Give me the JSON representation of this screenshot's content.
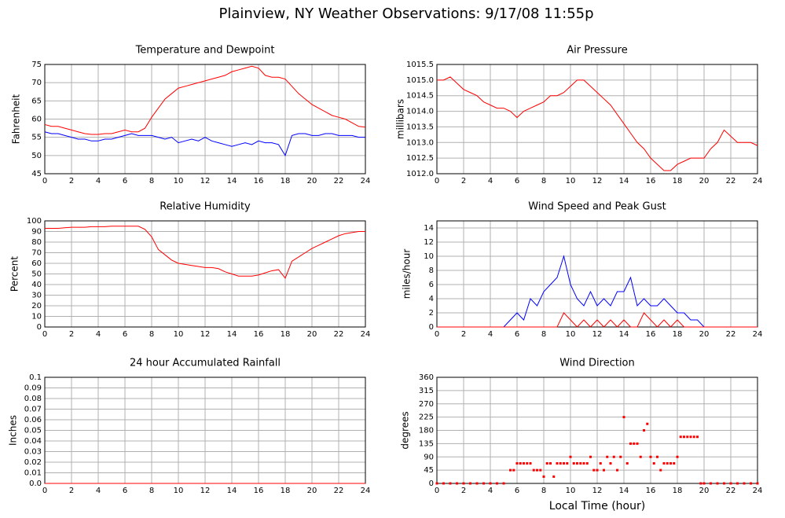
{
  "title": "Plainview, NY Weather Observations: 9/17/08 11:55p",
  "chart_data": [
    {
      "type": "line",
      "title": "Temperature and Dewpoint",
      "ylabel": "Fahrenheit",
      "x": [
        0,
        0.5,
        1,
        1.5,
        2,
        2.5,
        3,
        3.5,
        4,
        4.5,
        5,
        5.5,
        6,
        6.5,
        7,
        7.5,
        8,
        8.5,
        9,
        9.5,
        10,
        10.5,
        11,
        11.5,
        12,
        12.5,
        13,
        13.5,
        14,
        14.5,
        15,
        15.5,
        16,
        16.5,
        17,
        17.5,
        18,
        18.5,
        19,
        19.5,
        20,
        20.5,
        21,
        21.5,
        22,
        22.5,
        23,
        23.5,
        24
      ],
      "series": [
        {
          "color": "#ff0000",
          "values": [
            58.5,
            58,
            58,
            57.5,
            57,
            56.5,
            56,
            55.8,
            55.8,
            56,
            56,
            56.5,
            57,
            56.5,
            56.5,
            57.5,
            60.5,
            63,
            65.5,
            67,
            68.5,
            69,
            69.5,
            70,
            70.5,
            71,
            71.5,
            72,
            73,
            73.5,
            74,
            74.5,
            74,
            72,
            71.5,
            71.5,
            71,
            69,
            67,
            65.5,
            64,
            63,
            62,
            61,
            60.5,
            60,
            59,
            58,
            57.8
          ]
        },
        {
          "color": "#0000ff",
          "values": [
            56.5,
            56,
            56,
            55.5,
            55,
            54.5,
            54.5,
            54,
            54,
            54.5,
            54.5,
            55,
            55.5,
            56,
            55.5,
            55.5,
            55.5,
            55,
            54.5,
            55,
            53.5,
            54,
            54.5,
            54,
            55,
            54,
            53.5,
            53,
            52.5,
            53,
            53.5,
            53,
            54,
            53.5,
            53.5,
            53,
            50,
            55.5,
            56,
            56,
            55.5,
            55.5,
            56,
            56,
            55.5,
            55.5,
            55.5,
            55,
            55
          ]
        }
      ],
      "xlim": [
        0,
        24
      ],
      "xticks": [
        0,
        2,
        4,
        6,
        8,
        10,
        12,
        14,
        16,
        18,
        20,
        22,
        24
      ],
      "ylim": [
        45,
        75
      ],
      "yticks": [
        45,
        50,
        55,
        60,
        65,
        70,
        75
      ],
      "grid": true
    },
    {
      "type": "line",
      "title": "Air Pressure",
      "ylabel": "millibars",
      "x": [
        0,
        0.5,
        1,
        1.5,
        2,
        2.5,
        3,
        3.5,
        4,
        4.5,
        5,
        5.5,
        6,
        6.5,
        7,
        7.5,
        8,
        8.5,
        9,
        9.5,
        10,
        10.5,
        11,
        11.5,
        12,
        12.5,
        13,
        13.5,
        14,
        14.5,
        15,
        15.5,
        16,
        16.5,
        17,
        17.5,
        18,
        18.5,
        19,
        19.5,
        20,
        20.5,
        21,
        21.5,
        22,
        22.5,
        23,
        23.5,
        24
      ],
      "series": [
        {
          "color": "#ff0000",
          "values": [
            1015.0,
            1015.0,
            1015.1,
            1014.9,
            1014.7,
            1014.6,
            1014.5,
            1014.3,
            1014.2,
            1014.1,
            1014.1,
            1014.0,
            1013.8,
            1014.0,
            1014.1,
            1014.2,
            1014.3,
            1014.5,
            1014.5,
            1014.6,
            1014.8,
            1015.0,
            1015.0,
            1014.8,
            1014.6,
            1014.4,
            1014.2,
            1013.9,
            1013.6,
            1013.3,
            1013.0,
            1012.8,
            1012.5,
            1012.3,
            1012.1,
            1012.1,
            1012.3,
            1012.4,
            1012.5,
            1012.5,
            1012.5,
            1012.8,
            1013.0,
            1013.4,
            1013.2,
            1013.0,
            1013.0,
            1013.0,
            1012.9
          ]
        }
      ],
      "xlim": [
        0,
        24
      ],
      "xticks": [
        0,
        2,
        4,
        6,
        8,
        10,
        12,
        14,
        16,
        18,
        20,
        22,
        24
      ],
      "ylim": [
        1012.0,
        1015.5
      ],
      "yticks": [
        {
          "value": 1012,
          "label": "1012.0"
        },
        1012.5,
        {
          "value": 1013,
          "label": "1013.0"
        },
        1013.5,
        {
          "value": 1014,
          "label": "1014.0"
        },
        1014.5,
        {
          "value": 1015,
          "label": "1015.0"
        },
        1015.5
      ],
      "grid": true
    },
    {
      "type": "line",
      "title": "Relative Humidity",
      "ylabel": "Percent",
      "x": [
        0,
        0.5,
        1,
        1.5,
        2,
        2.5,
        3,
        3.5,
        4,
        4.5,
        5,
        5.5,
        6,
        6.5,
        7,
        7.5,
        8,
        8.5,
        9,
        9.5,
        10,
        10.5,
        11,
        11.5,
        12,
        12.5,
        13,
        13.5,
        14,
        14.5,
        15,
        15.5,
        16,
        16.5,
        17,
        17.5,
        18,
        18.5,
        19,
        19.5,
        20,
        20.5,
        21,
        21.5,
        22,
        22.5,
        23,
        23.5,
        24
      ],
      "series": [
        {
          "color": "#ff0000",
          "values": [
            93,
            93,
            93,
            93.5,
            94,
            94,
            94,
            94.5,
            94.5,
            94.5,
            95,
            95,
            95,
            95,
            95,
            92,
            85,
            73,
            68,
            63,
            60,
            59,
            58,
            57,
            56,
            56,
            55,
            52,
            50,
            48,
            48,
            48,
            49,
            51,
            53,
            54,
            46,
            62,
            66,
            70,
            74,
            77,
            80,
            83,
            86,
            88,
            89,
            90,
            90
          ]
        }
      ],
      "xlim": [
        0,
        24
      ],
      "xticks": [
        0,
        2,
        4,
        6,
        8,
        10,
        12,
        14,
        16,
        18,
        20,
        22,
        24
      ],
      "ylim": [
        0,
        100
      ],
      "yticks": [
        0,
        10,
        20,
        30,
        40,
        50,
        60,
        70,
        80,
        90,
        100
      ],
      "grid": true
    },
    {
      "type": "line",
      "title": "Wind Speed and Peak Gust",
      "ylabel": "miles/hour",
      "x": [
        0,
        0.5,
        1,
        1.5,
        2,
        2.5,
        3,
        3.5,
        4,
        4.5,
        5,
        5.5,
        6,
        6.5,
        7,
        7.5,
        8,
        8.5,
        9,
        9.5,
        10,
        10.5,
        11,
        11.5,
        12,
        12.5,
        13,
        13.5,
        14,
        14.5,
        15,
        15.5,
        16,
        16.5,
        17,
        17.5,
        18,
        18.5,
        19,
        19.5,
        20,
        20.5,
        21,
        21.5,
        22,
        22.5,
        23,
        23.5,
        24
      ],
      "series": [
        {
          "color": "#0000ff",
          "values": [
            0,
            0,
            0,
            0,
            0,
            0,
            0,
            0,
            0,
            0,
            0,
            1,
            2,
            1,
            4,
            3,
            5,
            6,
            7,
            10,
            6,
            4,
            3,
            5,
            3,
            4,
            3,
            5,
            5,
            7,
            3,
            4,
            3,
            3,
            4,
            3,
            2,
            2,
            1,
            1,
            0,
            0,
            0,
            0,
            0,
            0,
            0,
            0,
            0
          ]
        },
        {
          "color": "#ff0000",
          "values": [
            0,
            0,
            0,
            0,
            0,
            0,
            0,
            0,
            0,
            0,
            0,
            0,
            0,
            0,
            0,
            0,
            0,
            0,
            0,
            2,
            1,
            0,
            1,
            0,
            1,
            0,
            1,
            0,
            1,
            0,
            0,
            2,
            1,
            0,
            1,
            0,
            1,
            0,
            0,
            0,
            0,
            0,
            0,
            0,
            0,
            0,
            0,
            0,
            0
          ]
        }
      ],
      "xlim": [
        0,
        24
      ],
      "xticks": [
        0,
        2,
        4,
        6,
        8,
        10,
        12,
        14,
        16,
        18,
        20,
        22,
        24
      ],
      "ylim": [
        0,
        15
      ],
      "yticks": [
        0,
        2,
        4,
        6,
        8,
        10,
        12,
        14
      ],
      "grid": true
    },
    {
      "type": "line",
      "title": "24 hour Accumulated Rainfall",
      "ylabel": "Inches",
      "x": [
        0,
        24
      ],
      "series": [
        {
          "color": "#ff0000",
          "values": [
            0,
            0
          ]
        }
      ],
      "xlim": [
        0,
        24
      ],
      "xticks": [
        0,
        2,
        4,
        6,
        8,
        10,
        12,
        14,
        16,
        18,
        20,
        22,
        24
      ],
      "ylim": [
        0,
        0.1
      ],
      "yticks": [
        {
          "value": 0,
          "label": "0.0"
        },
        0.01,
        0.02,
        0.03,
        0.04,
        0.05,
        0.06,
        0.07,
        0.08,
        0.09,
        0.1
      ],
      "grid": true
    },
    {
      "type": "scatter",
      "title": "Wind Direction",
      "ylabel": "degrees",
      "xlabel": "Local Time (hour)",
      "x": [
        0,
        0.5,
        1,
        1.5,
        2,
        2.5,
        3,
        3.5,
        4,
        4.5,
        5,
        5.5,
        5.75,
        6,
        6.25,
        6.5,
        6.75,
        7,
        7.25,
        7.5,
        7.75,
        8,
        8.25,
        8.5,
        8.75,
        9,
        9.25,
        9.5,
        9.75,
        10,
        10.25,
        10.5,
        10.75,
        11,
        11.25,
        11.5,
        11.75,
        12,
        12.25,
        12.5,
        12.75,
        13,
        13.25,
        13.5,
        13.75,
        14,
        14.25,
        14.5,
        14.75,
        15,
        15.25,
        15.5,
        15.75,
        16,
        16.25,
        16.5,
        16.75,
        17,
        17.25,
        17.5,
        17.75,
        18,
        18.25,
        18.5,
        18.75,
        19,
        19.25,
        19.5,
        19.75,
        20,
        20.5,
        21,
        21.5,
        22,
        22.5,
        23,
        23.5,
        24
      ],
      "series": [
        {
          "color": "#ff0000",
          "values": [
            0,
            0,
            0,
            0,
            0,
            0,
            0,
            0,
            0,
            0,
            0,
            45,
            45,
            68,
            68,
            68,
            68,
            68,
            45,
            45,
            45,
            23,
            68,
            68,
            23,
            68,
            68,
            68,
            68,
            90,
            68,
            68,
            68,
            68,
            68,
            90,
            45,
            45,
            68,
            45,
            90,
            68,
            90,
            45,
            90,
            225,
            68,
            135,
            135,
            135,
            90,
            180,
            202,
            90,
            68,
            90,
            45,
            68,
            68,
            68,
            68,
            90,
            158,
            158,
            158,
            158,
            158,
            158,
            0,
            0,
            0,
            0,
            0,
            0,
            0,
            0,
            0,
            0
          ]
        }
      ],
      "xlim": [
        0,
        24
      ],
      "xticks": [
        0,
        2,
        4,
        6,
        8,
        10,
        12,
        14,
        16,
        18,
        20,
        22,
        24
      ],
      "ylim": [
        0,
        360
      ],
      "yticks": [
        0,
        45,
        90,
        135,
        180,
        225,
        270,
        315,
        360
      ],
      "grid": true
    }
  ]
}
